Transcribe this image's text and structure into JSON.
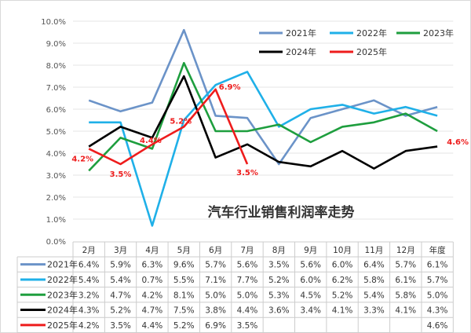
{
  "chart_data": {
    "type": "line",
    "title": "汽车行业销售利润率走势",
    "categories": [
      "2月",
      "3月",
      "4月",
      "5月",
      "6月",
      "7月",
      "8月",
      "9月",
      "10月",
      "11月",
      "12月",
      "年度"
    ],
    "ylim": [
      0,
      10
    ],
    "yticks": [
      "0.0%",
      "1.0%",
      "2.0%",
      "3.0%",
      "4.0%",
      "5.0%",
      "6.0%",
      "7.0%",
      "8.0%",
      "9.0%",
      "10.0%"
    ],
    "grid": true,
    "legend_placement": "top-right",
    "series": [
      {
        "name": "2021年",
        "color": "#6b93c8",
        "values": [
          6.4,
          5.9,
          6.3,
          9.6,
          5.7,
          5.6,
          3.5,
          5.6,
          6.0,
          6.4,
          5.7,
          6.1
        ],
        "labels": [
          "6.4%",
          "5.9%",
          "6.3%",
          "9.6%",
          "5.7%",
          "5.6%",
          "3.5%",
          "5.6%",
          "6.0%",
          "6.4%",
          "5.7%",
          "6.1%"
        ]
      },
      {
        "name": "2022年",
        "color": "#1fb0e8",
        "values": [
          5.4,
          5.4,
          0.7,
          5.5,
          7.1,
          7.7,
          5.2,
          6.0,
          6.2,
          5.8,
          6.1,
          5.7
        ],
        "labels": [
          "5.4%",
          "5.4%",
          "0.7%",
          "5.5%",
          "7.1%",
          "7.7%",
          "5.2%",
          "6.0%",
          "6.2%",
          "5.8%",
          "6.1%",
          "5.7%"
        ]
      },
      {
        "name": "2023年",
        "color": "#1e9e3e",
        "values": [
          3.2,
          4.7,
          4.2,
          8.1,
          5.0,
          5.0,
          5.3,
          4.5,
          5.2,
          5.4,
          5.8,
          5.0
        ],
        "labels": [
          "3.2%",
          "4.7%",
          "4.2%",
          "8.1%",
          "5.0%",
          "5.0%",
          "5.3%",
          "4.5%",
          "5.2%",
          "5.4%",
          "5.8%",
          "5.0%"
        ]
      },
      {
        "name": "2024年",
        "color": "#000000",
        "values": [
          4.3,
          5.2,
          4.7,
          7.5,
          3.8,
          4.4,
          3.6,
          3.4,
          4.1,
          3.3,
          4.1,
          4.3
        ],
        "labels": [
          "4.3%",
          "5.2%",
          "4.7%",
          "7.5%",
          "3.8%",
          "4.4%",
          "3.6%",
          "3.4%",
          "4.1%",
          "3.3%",
          "4.1%",
          "4.3%"
        ]
      },
      {
        "name": "2025年",
        "color": "#ee1c1c",
        "values": [
          4.2,
          3.5,
          4.4,
          5.2,
          6.9,
          3.5,
          null,
          null,
          null,
          null,
          null,
          4.6
        ],
        "labels": [
          "4.2%",
          "3.5%",
          "4.4%",
          "5.2%",
          "6.9%",
          "3.5%",
          "",
          "",
          "",
          "",
          "",
          "4.6%"
        ]
      }
    ]
  }
}
